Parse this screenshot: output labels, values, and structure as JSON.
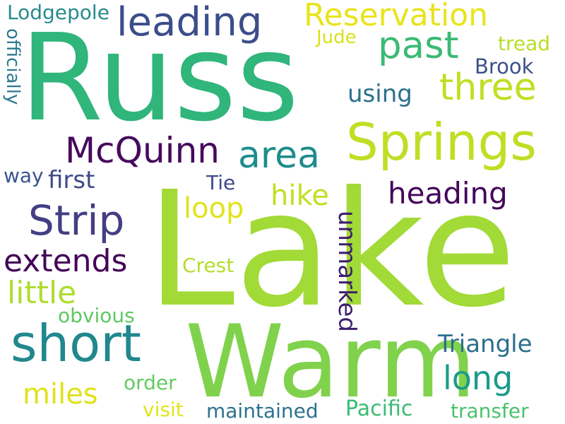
{
  "words": [
    {
      "text": "Lake",
      "color": "#a2da37",
      "vertical": false
    },
    {
      "text": "Russ",
      "color": "#30b57b",
      "vertical": false
    },
    {
      "text": "Warm",
      "color": "#80d24c",
      "vertical": false
    },
    {
      "text": "Springs",
      "color": "#bfdf25",
      "vertical": false
    },
    {
      "text": "short",
      "color": "#21888d",
      "vertical": false
    },
    {
      "text": "McQuinn",
      "color": "#460a5d",
      "vertical": false
    },
    {
      "text": "leading",
      "color": "#3c4d8a",
      "vertical": false
    },
    {
      "text": "Reservation",
      "color": "#e8e41c",
      "vertical": false
    },
    {
      "text": "past",
      "color": "#3bba74",
      "vertical": false
    },
    {
      "text": "three",
      "color": "#c0df23",
      "vertical": false
    },
    {
      "text": "area",
      "color": "#1e8c8b",
      "vertical": false
    },
    {
      "text": "Strip",
      "color": "#433e84",
      "vertical": false
    },
    {
      "text": "heading",
      "color": "#45065a",
      "vertical": false
    },
    {
      "text": "extends",
      "color": "#450559",
      "vertical": false
    },
    {
      "text": "little",
      "color": "#b0dc30",
      "vertical": false
    },
    {
      "text": "hike",
      "color": "#c1df24",
      "vertical": false
    },
    {
      "text": "loop",
      "color": "#e1e31b",
      "vertical": false
    },
    {
      "text": "unmarked",
      "color": "#3c1f6b",
      "vertical": true
    },
    {
      "text": "long",
      "color": "#1b9b8a",
      "vertical": false
    },
    {
      "text": "miles",
      "color": "#e0e21a",
      "vertical": false
    },
    {
      "text": "Triangle",
      "color": "#2b6f8d",
      "vertical": false
    },
    {
      "text": "using",
      "color": "#2c718e",
      "vertical": false
    },
    {
      "text": "first",
      "color": "#3e4a89",
      "vertical": false
    },
    {
      "text": "Brook",
      "color": "#3b5188",
      "vertical": false
    },
    {
      "text": "officially",
      "color": "#2d788e",
      "vertical": true
    },
    {
      "text": "Lodgepole",
      "color": "#278a8d",
      "vertical": false
    },
    {
      "text": "Jude",
      "color": "#d8e21b",
      "vertical": false
    },
    {
      "text": "tread",
      "color": "#b9de27",
      "vertical": false
    },
    {
      "text": "way",
      "color": "#3a548c",
      "vertical": false
    },
    {
      "text": "Tie",
      "color": "#3e4a89",
      "vertical": false
    },
    {
      "text": "Crest",
      "color": "#b4dd2c",
      "vertical": false
    },
    {
      "text": "obvious",
      "color": "#5ec962",
      "vertical": false
    },
    {
      "text": "order",
      "color": "#63cb5f",
      "vertical": false
    },
    {
      "text": "visit",
      "color": "#e3e418",
      "vertical": false
    },
    {
      "text": "maintained",
      "color": "#2c728e",
      "vertical": false
    },
    {
      "text": "Pacific",
      "color": "#3bbb75",
      "vertical": false
    },
    {
      "text": "transfer",
      "color": "#4ac16d",
      "vertical": false
    }
  ]
}
